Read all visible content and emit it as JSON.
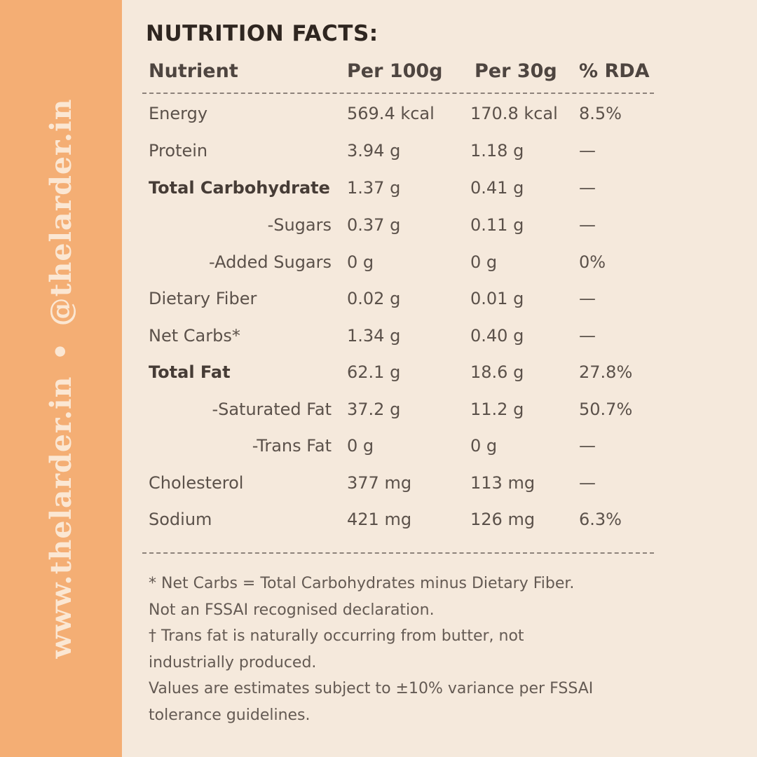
{
  "sidebar": {
    "text_left": "www.thelarder.in",
    "separator": "•",
    "text_right": "@thelarder.in"
  },
  "title": "NUTRITION FACTS:",
  "table": {
    "headers": [
      "Nutrient",
      "Per 100g",
      "Per 30g",
      "% RDA"
    ],
    "rows": [
      {
        "nutrient": "Energy",
        "per100": "569.4 kcal",
        "per30": "170.8 kcal",
        "rda": "8.5%"
      },
      {
        "nutrient": "Protein",
        "per100": "3.94 g",
        "per30": "1.18 g",
        "rda": "—"
      },
      {
        "nutrient": "Total Carbohydrate",
        "per100": "1.37 g",
        "per30": "0.41 g",
        "rda": "—"
      },
      {
        "nutrient": "-Sugars",
        "per100": "0.37 g",
        "per30": "0.11 g",
        "rda": "—"
      },
      {
        "nutrient": "-Added Sugars",
        "per100": "0 g",
        "per30": "0 g",
        "rda": "0%"
      },
      {
        "nutrient": "Dietary Fiber",
        "per100": "0.02 g",
        "per30": "0.01 g",
        "rda": "—"
      },
      {
        "nutrient": "Net Carbs*",
        "per100": "1.34 g",
        "per30": "0.40 g",
        "rda": "—"
      },
      {
        "nutrient": "Total Fat",
        "per100": "62.1 g",
        "per30": "18.6 g",
        "rda": "27.8%"
      },
      {
        "nutrient": "-Saturated Fat",
        "per100": "37.2 g",
        "per30": "11.2 g",
        "rda": "50.7%"
      },
      {
        "nutrient": "-Trans Fat",
        "per100": "0 g",
        "per30": "0 g",
        "rda": "—"
      },
      {
        "nutrient": "Cholesterol",
        "per100": "377 mg",
        "per30": "113 mg",
        "rda": "—"
      },
      {
        "nutrient": "Sodium",
        "per100": "421 mg",
        "per30": "126 mg",
        "rda": "6.3%"
      }
    ]
  },
  "notes": [
    "* Net Carbs = Total Carbohydrates minus Dietary Fiber.",
    "Not an FSSAI recognised declaration.",
    "† Trans fat is naturally occurring from butter, not",
    "industrially produced.",
    "Values are estimates subject to ±10% variance per FSSAI",
    "tolerance guidelines."
  ]
}
